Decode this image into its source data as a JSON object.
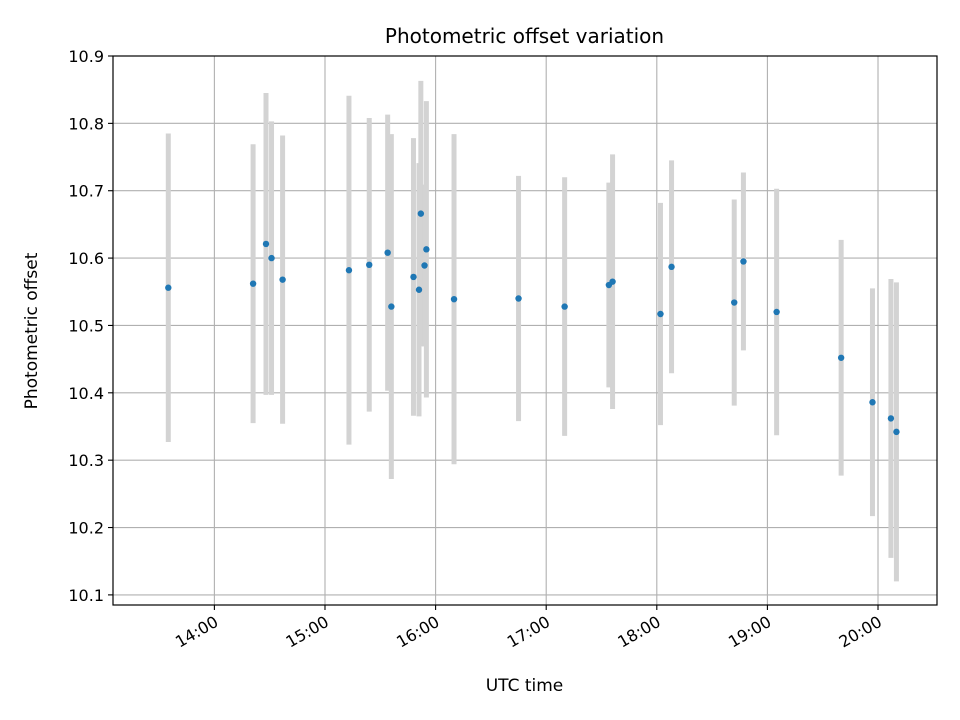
{
  "chart_data": {
    "type": "scatter",
    "title": "Photometric offset variation",
    "xlabel": "UTC time",
    "ylabel": "Photometric offset",
    "x_axis_kind": "time",
    "xlim": [
      "13:05",
      "20:32"
    ],
    "ylim": [
      10.085,
      10.9
    ],
    "y_ticks": [
      10.1,
      10.2,
      10.3,
      10.4,
      10.5,
      10.6,
      10.7,
      10.8,
      10.9
    ],
    "x_ticks": [
      "14:00",
      "15:00",
      "16:00",
      "17:00",
      "18:00",
      "19:00",
      "20:00"
    ],
    "grid": true,
    "legend": "none",
    "colors": {
      "points": "#1f77b4",
      "errorbars": "#d3d3d3",
      "grid": "#b0b0b0"
    },
    "points": [
      {
        "x": "13:35",
        "y": 10.556,
        "err": 0.229
      },
      {
        "x": "14:21",
        "y": 10.562,
        "err": 0.207
      },
      {
        "x": "14:28",
        "y": 10.621,
        "err": 0.224
      },
      {
        "x": "14:31",
        "y": 10.6,
        "err": 0.203
      },
      {
        "x": "14:37",
        "y": 10.568,
        "err": 0.214
      },
      {
        "x": "15:13",
        "y": 10.582,
        "err": 0.259
      },
      {
        "x": "15:24",
        "y": 10.59,
        "err": 0.218
      },
      {
        "x": "15:34",
        "y": 10.608,
        "err": 0.205
      },
      {
        "x": "15:36",
        "y": 10.528,
        "err": 0.256
      },
      {
        "x": "15:48",
        "y": 10.572,
        "err": 0.206
      },
      {
        "x": "15:51",
        "y": 10.553,
        "err": 0.188
      },
      {
        "x": "15:52",
        "y": 10.666,
        "err": 0.197
      },
      {
        "x": "15:54",
        "y": 10.589,
        "err": 0.12
      },
      {
        "x": "15:55",
        "y": 10.613,
        "err": 0.22
      },
      {
        "x": "16:10",
        "y": 10.539,
        "err": 0.245
      },
      {
        "x": "16:45",
        "y": 10.54,
        "err": 0.182
      },
      {
        "x": "17:10",
        "y": 10.528,
        "err": 0.192
      },
      {
        "x": "17:34",
        "y": 10.56,
        "err": 0.152
      },
      {
        "x": "17:36",
        "y": 10.565,
        "err": 0.189
      },
      {
        "x": "18:02",
        "y": 10.517,
        "err": 0.165
      },
      {
        "x": "18:08",
        "y": 10.587,
        "err": 0.158
      },
      {
        "x": "18:42",
        "y": 10.534,
        "err": 0.153
      },
      {
        "x": "18:47",
        "y": 10.595,
        "err": 0.132
      },
      {
        "x": "19:05",
        "y": 10.52,
        "err": 0.183
      },
      {
        "x": "19:40",
        "y": 10.452,
        "err": 0.175
      },
      {
        "x": "19:57",
        "y": 10.386,
        "err": 0.169
      },
      {
        "x": "20:07",
        "y": 10.362,
        "err": 0.207
      },
      {
        "x": "20:10",
        "y": 10.342,
        "err": 0.222
      }
    ]
  }
}
